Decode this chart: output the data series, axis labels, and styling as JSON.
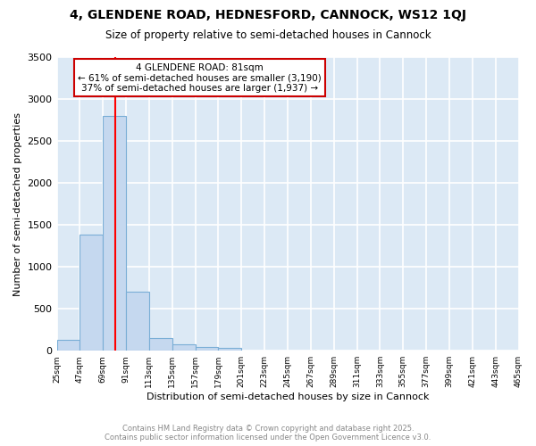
{
  "title1": "4, GLENDENE ROAD, HEDNESFORD, CANNOCK, WS12 1QJ",
  "title2": "Size of property relative to semi-detached houses in Cannock",
  "xlabel": "Distribution of semi-detached houses by size in Cannock",
  "ylabel": "Number of semi-detached properties",
  "bin_edges": [
    25,
    47,
    69,
    91,
    113,
    135,
    157,
    179,
    201,
    223,
    245,
    267,
    289,
    311,
    333,
    355,
    377,
    399,
    421,
    443,
    465
  ],
  "counts": [
    130,
    1380,
    2800,
    700,
    155,
    80,
    40,
    30,
    0,
    0,
    0,
    0,
    0,
    0,
    0,
    0,
    0,
    0,
    0,
    0
  ],
  "bar_color": "#c5d8ef",
  "bar_edge_color": "#7aaed6",
  "red_line_x": 81,
  "annotation_title": "4 GLENDENE ROAD: 81sqm",
  "annotation_line1": "← 61% of semi-detached houses are smaller (3,190)",
  "annotation_line2": "37% of semi-detached houses are larger (1,937) →",
  "annotation_box_color": "#ffffff",
  "annotation_box_edge": "#cc0000",
  "ylim": [
    0,
    3500
  ],
  "plot_bg_color": "#dce9f5",
  "fig_bg_color": "#ffffff",
  "grid_color": "#ffffff",
  "footer1": "Contains HM Land Registry data © Crown copyright and database right 2025.",
  "footer2": "Contains public sector information licensed under the Open Government Licence v3.0."
}
